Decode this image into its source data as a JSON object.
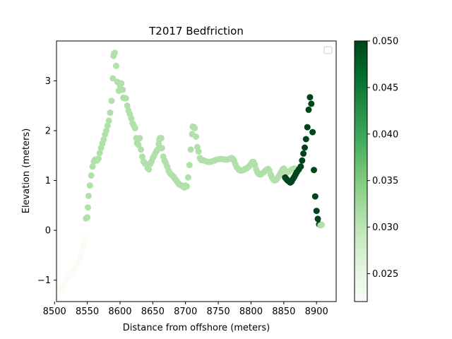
{
  "chart_data": {
    "type": "scatter",
    "title": "T2017 Bedfriction",
    "xlabel": "Distance from offshore (meters)",
    "ylabel": "Elevation (meters)",
    "xlim": [
      8503,
      8930
    ],
    "ylim": [
      -1.43,
      3.8
    ],
    "xticks": [
      8500,
      8550,
      8600,
      8650,
      8700,
      8750,
      8800,
      8850,
      8900
    ],
    "yticks": [
      -1,
      0,
      1,
      2,
      3
    ],
    "grid": false,
    "legend": "upper-right (empty)",
    "colorbar": {
      "cmap": "Greens",
      "range": [
        0.022,
        0.05
      ],
      "ticks": [
        0.025,
        0.03,
        0.035,
        0.04,
        0.045,
        0.05
      ],
      "tick_labels": [
        "0.025",
        "0.030",
        "0.035",
        "0.040",
        "0.045",
        "0.050"
      ]
    },
    "colors": {
      "low": "#f7fcf5",
      "mid": "#c0e6b9",
      "high": "#00441b"
    },
    "points": [
      [
        8510,
        -1.18,
        0.022
      ],
      [
        8513,
        -1.12,
        0.022
      ],
      [
        8516,
        -1.05,
        0.022
      ],
      [
        8519,
        -0.98,
        0.022
      ],
      [
        8522,
        -0.92,
        0.022
      ],
      [
        8525,
        -0.86,
        0.022
      ],
      [
        8528,
        -0.81,
        0.022
      ],
      [
        8531,
        -0.76,
        0.022
      ],
      [
        8534,
        -0.71,
        0.022
      ],
      [
        8537,
        -0.62,
        0.022
      ],
      [
        8540,
        -0.52,
        0.022
      ],
      [
        8542,
        -0.42,
        0.022
      ],
      [
        8544,
        -0.3,
        0.022
      ],
      [
        8546,
        -0.18,
        0.022
      ],
      [
        8548,
        0.24,
        0.031
      ],
      [
        8550,
        0.26,
        0.031
      ],
      [
        8551,
        0.46,
        0.031
      ],
      [
        8552,
        0.69,
        0.031
      ],
      [
        8554,
        0.9,
        0.031
      ],
      [
        8556,
        1.1,
        0.031
      ],
      [
        8558,
        1.28,
        0.031
      ],
      [
        8560,
        1.38,
        0.031
      ],
      [
        8562,
        1.42,
        0.031
      ],
      [
        8565,
        1.4,
        0.031
      ],
      [
        8567,
        1.44,
        0.031
      ],
      [
        8569,
        1.55,
        0.031
      ],
      [
        8571,
        1.65,
        0.031
      ],
      [
        8573,
        1.74,
        0.031
      ],
      [
        8575,
        1.82,
        0.031
      ],
      [
        8577,
        1.92,
        0.031
      ],
      [
        8579,
        2.0,
        0.031
      ],
      [
        8581,
        2.1,
        0.031
      ],
      [
        8583,
        2.2,
        0.031
      ],
      [
        8585,
        2.36,
        0.031
      ],
      [
        8587,
        2.6,
        0.031
      ],
      [
        8589,
        3.05,
        0.031
      ],
      [
        8590,
        3.5,
        0.031
      ],
      [
        8591,
        3.55,
        0.031
      ],
      [
        8592,
        3.56,
        0.031
      ],
      [
        8594,
        3.3,
        0.031
      ],
      [
        8596,
        2.98,
        0.031
      ],
      [
        8598,
        2.8,
        0.031
      ],
      [
        8600,
        2.9,
        0.031
      ],
      [
        8602,
        2.95,
        0.031
      ],
      [
        8604,
        2.82,
        0.031
      ],
      [
        8605,
        2.66,
        0.031
      ],
      [
        8607,
        2.65,
        0.031
      ],
      [
        8609,
        2.65,
        0.031
      ],
      [
        8611,
        2.5,
        0.031
      ],
      [
        8613,
        2.4,
        0.031
      ],
      [
        8615,
        2.33,
        0.031
      ],
      [
        8617,
        2.25,
        0.031
      ],
      [
        8619,
        2.15,
        0.031
      ],
      [
        8621,
        2.1,
        0.031
      ],
      [
        8623,
        2.05,
        0.031
      ],
      [
        8625,
        1.85,
        0.031
      ],
      [
        8626,
        1.75,
        0.031
      ],
      [
        8628,
        1.72,
        0.031
      ],
      [
        8630,
        1.85,
        0.031
      ],
      [
        8632,
        1.62,
        0.031
      ],
      [
        8634,
        1.48,
        0.031
      ],
      [
        8636,
        1.38,
        0.031
      ],
      [
        8638,
        1.34,
        0.031
      ],
      [
        8640,
        1.33,
        0.031
      ],
      [
        8642,
        1.25,
        0.031
      ],
      [
        8644,
        1.22,
        0.031
      ],
      [
        8646,
        1.33,
        0.031
      ],
      [
        8648,
        1.38,
        0.031
      ],
      [
        8650,
        1.45,
        0.031
      ],
      [
        8652,
        1.5,
        0.031
      ],
      [
        8654,
        1.55,
        0.031
      ],
      [
        8656,
        1.6,
        0.031
      ],
      [
        8658,
        1.63,
        0.031
      ],
      [
        8659,
        1.73,
        0.031
      ],
      [
        8660,
        1.82,
        0.031
      ],
      [
        8661,
        1.85,
        0.031
      ],
      [
        8663,
        1.85,
        0.031
      ],
      [
        8664,
        1.65,
        0.031
      ],
      [
        8666,
        1.48,
        0.031
      ],
      [
        8668,
        1.4,
        0.031
      ],
      [
        8670,
        1.35,
        0.031
      ],
      [
        8672,
        1.28,
        0.031
      ],
      [
        8674,
        1.2,
        0.031
      ],
      [
        8676,
        1.15,
        0.031
      ],
      [
        8678,
        1.12,
        0.031
      ],
      [
        8680,
        1.1,
        0.031
      ],
      [
        8682,
        1.07,
        0.031
      ],
      [
        8684,
        1.03,
        0.031
      ],
      [
        8686,
        1.0,
        0.031
      ],
      [
        8688,
        0.96,
        0.031
      ],
      [
        8690,
        0.93,
        0.031
      ],
      [
        8692,
        0.91,
        0.031
      ],
      [
        8694,
        0.9,
        0.031
      ],
      [
        8696,
        0.88,
        0.031
      ],
      [
        8698,
        0.86,
        0.031
      ],
      [
        8700,
        0.9,
        0.031
      ],
      [
        8702,
        0.88,
        0.031
      ],
      [
        8704,
        1.06,
        0.031
      ],
      [
        8706,
        1.31,
        0.031
      ],
      [
        8708,
        1.62,
        0.031
      ],
      [
        8710,
        1.93,
        0.031
      ],
      [
        8711,
        2.08,
        0.031
      ],
      [
        8713,
        2.07,
        0.031
      ],
      [
        8714,
        2.05,
        0.031
      ],
      [
        8716,
        1.88,
        0.031
      ],
      [
        8718,
        1.67,
        0.031
      ],
      [
        8720,
        1.58,
        0.031
      ],
      [
        8722,
        1.45,
        0.031
      ],
      [
        8724,
        1.41,
        0.031
      ],
      [
        8726,
        1.41,
        0.031
      ],
      [
        8728,
        1.4,
        0.031
      ],
      [
        8732,
        1.38,
        0.031
      ],
      [
        8736,
        1.37,
        0.031
      ],
      [
        8740,
        1.38,
        0.031
      ],
      [
        8744,
        1.4,
        0.031
      ],
      [
        8748,
        1.42,
        0.031
      ],
      [
        8752,
        1.43,
        0.031
      ],
      [
        8756,
        1.43,
        0.031
      ],
      [
        8760,
        1.42,
        0.031
      ],
      [
        8764,
        1.42,
        0.031
      ],
      [
        8768,
        1.44,
        0.031
      ],
      [
        8770,
        1.45,
        0.031
      ],
      [
        8772,
        1.44,
        0.031
      ],
      [
        8774,
        1.4,
        0.031
      ],
      [
        8776,
        1.33,
        0.031
      ],
      [
        8778,
        1.27,
        0.031
      ],
      [
        8780,
        1.24,
        0.031
      ],
      [
        8782,
        1.21,
        0.031
      ],
      [
        8784,
        1.2,
        0.031
      ],
      [
        8786,
        1.2,
        0.031
      ],
      [
        8788,
        1.21,
        0.031
      ],
      [
        8790,
        1.22,
        0.031
      ],
      [
        8792,
        1.24,
        0.031
      ],
      [
        8794,
        1.25,
        0.031
      ],
      [
        8796,
        1.27,
        0.031
      ],
      [
        8798,
        1.3,
        0.031
      ],
      [
        8800,
        1.33,
        0.031
      ],
      [
        8802,
        1.37,
        0.031
      ],
      [
        8804,
        1.37,
        0.031
      ],
      [
        8806,
        1.31,
        0.031
      ],
      [
        8808,
        1.22,
        0.031
      ],
      [
        8810,
        1.16,
        0.031
      ],
      [
        8812,
        1.13,
        0.031
      ],
      [
        8814,
        1.12,
        0.031
      ],
      [
        8816,
        1.13,
        0.031
      ],
      [
        8818,
        1.15,
        0.031
      ],
      [
        8820,
        1.17,
        0.031
      ],
      [
        8822,
        1.2,
        0.031
      ],
      [
        8824,
        1.22,
        0.031
      ],
      [
        8826,
        1.23,
        0.031
      ],
      [
        8828,
        1.2,
        0.031
      ],
      [
        8830,
        1.12,
        0.031
      ],
      [
        8832,
        1.06,
        0.031
      ],
      [
        8834,
        1.02,
        0.031
      ],
      [
        8836,
        1.0,
        0.031
      ],
      [
        8838,
        1.01,
        0.031
      ],
      [
        8840,
        1.04,
        0.031
      ],
      [
        8842,
        1.08,
        0.031
      ],
      [
        8844,
        1.12,
        0.031
      ],
      [
        8846,
        1.17,
        0.031
      ],
      [
        8848,
        1.22,
        0.031
      ],
      [
        8850,
        1.24,
        0.031
      ],
      [
        8852,
        1.2,
        0.031
      ],
      [
        8855,
        1.16,
        0.031
      ],
      [
        8858,
        1.18,
        0.031
      ],
      [
        8862,
        1.22,
        0.031
      ],
      [
        8866,
        1.24,
        0.031
      ],
      [
        8870,
        1.23,
        0.031
      ],
      [
        8852,
        1.06,
        0.05
      ],
      [
        8854,
        1.03,
        0.05
      ],
      [
        8856,
        1.0,
        0.05
      ],
      [
        8858,
        0.98,
        0.05
      ],
      [
        8860,
        0.96,
        0.05
      ],
      [
        8862,
        0.98,
        0.05
      ],
      [
        8864,
        1.03,
        0.05
      ],
      [
        8866,
        1.07,
        0.05
      ],
      [
        8868,
        1.12,
        0.05
      ],
      [
        8870,
        1.17,
        0.05
      ],
      [
        8873,
        1.22,
        0.05
      ],
      [
        8876,
        1.28,
        0.05
      ],
      [
        8878,
        1.4,
        0.05
      ],
      [
        8880,
        1.54,
        0.05
      ],
      [
        8882,
        1.66,
        0.05
      ],
      [
        8884,
        1.83,
        0.05
      ],
      [
        8886,
        2.07,
        0.05
      ],
      [
        8888,
        2.42,
        0.05
      ],
      [
        8890,
        2.67,
        0.05
      ],
      [
        8892,
        2.54,
        0.05
      ],
      [
        8894,
        1.97,
        0.05
      ],
      [
        8896,
        1.21,
        0.05
      ],
      [
        8898,
        0.68,
        0.05
      ],
      [
        8900,
        0.39,
        0.05
      ],
      [
        8902,
        0.23,
        0.05
      ],
      [
        8904,
        0.12,
        0.05
      ],
      [
        8906,
        0.1,
        0.031
      ],
      [
        8908,
        0.11,
        0.031
      ]
    ]
  }
}
